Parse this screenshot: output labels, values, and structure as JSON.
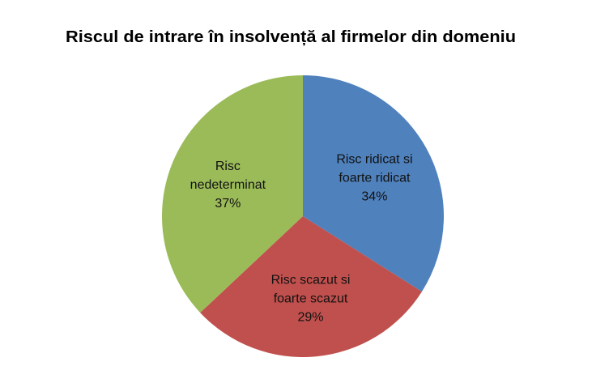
{
  "chart_data": {
    "type": "pie",
    "title": "Riscul de intrare în insolvență al firmelor din domeniu",
    "start_angle": "top, clockwise",
    "slices": [
      {
        "label": "Risc ridicat si foarte ridicat",
        "label_lines": [
          "Risc ridicat si",
          "foarte ridicat"
        ],
        "value": 34,
        "value_label": "34%",
        "color": "#4F81BD"
      },
      {
        "label": "Risc scazut si foarte scazut",
        "label_lines": [
          "Risc scazut si",
          "foarte scazut"
        ],
        "value": 29,
        "value_label": "29%",
        "color": "#C0504D"
      },
      {
        "label": "Risc nedeterminat",
        "label_lines": [
          "Risc",
          "nedeterminat"
        ],
        "value": 37,
        "value_label": "37%",
        "color": "#9BBB59"
      }
    ],
    "legend": "none"
  }
}
